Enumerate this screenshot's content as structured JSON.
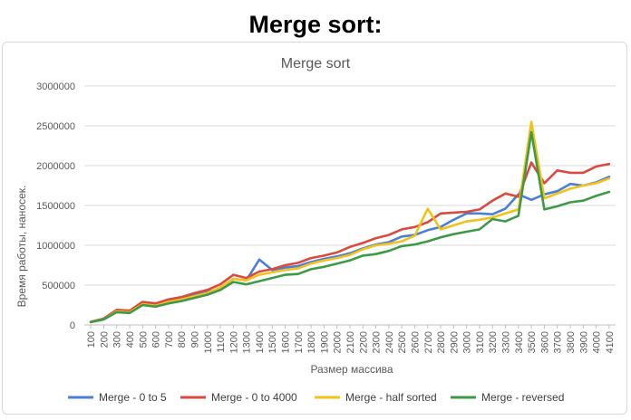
{
  "page": {
    "heading": "Merge sort:"
  },
  "chart_data": {
    "type": "line",
    "title": "Merge sort",
    "xlabel": "Размер массива",
    "ylabel": "Время работы, наносек.",
    "ylim": [
      0,
      3000000
    ],
    "y_ticks": [
      0,
      500000,
      1000000,
      1500000,
      2000000,
      2500000,
      3000000
    ],
    "grid": true,
    "legend_position": "bottom",
    "categories": [
      "100",
      "200",
      "300",
      "400",
      "500",
      "600",
      "700",
      "800",
      "900",
      "1000",
      "1100",
      "1200",
      "1300",
      "1400",
      "1500",
      "1600",
      "1700",
      "1800",
      "1900",
      "2000",
      "2100",
      "2200",
      "2300",
      "2400",
      "2500",
      "2600",
      "2700",
      "2800",
      "2900",
      "3000",
      "3100",
      "3200",
      "3300",
      "3400",
      "3500",
      "3600",
      "3700",
      "3800",
      "3900",
      "4000",
      "4100"
    ],
    "series": [
      {
        "name": "Merge - 0 to 5",
        "color": "#4a7fd8",
        "values": [
          35000,
          70000,
          170000,
          160000,
          260000,
          240000,
          290000,
          330000,
          370000,
          410000,
          460000,
          580000,
          560000,
          820000,
          690000,
          720000,
          740000,
          790000,
          830000,
          860000,
          900000,
          960000,
          1010000,
          1040000,
          1110000,
          1130000,
          1190000,
          1230000,
          1320000,
          1400000,
          1400000,
          1390000,
          1460000,
          1640000,
          1570000,
          1640000,
          1680000,
          1770000,
          1750000,
          1790000,
          1860000
        ]
      },
      {
        "name": "Merge - 0 to 4000",
        "color": "#d94a3f",
        "values": [
          40000,
          80000,
          190000,
          180000,
          290000,
          270000,
          320000,
          350000,
          400000,
          440000,
          510000,
          630000,
          590000,
          670000,
          700000,
          750000,
          780000,
          840000,
          870000,
          910000,
          980000,
          1030000,
          1090000,
          1130000,
          1200000,
          1230000,
          1290000,
          1400000,
          1410000,
          1420000,
          1450000,
          1560000,
          1650000,
          1610000,
          2040000,
          1780000,
          1940000,
          1910000,
          1910000,
          1990000,
          2020000
        ]
      },
      {
        "name": "Merge - half sorted",
        "color": "#f2c21b",
        "values": [
          35000,
          70000,
          170000,
          160000,
          260000,
          240000,
          290000,
          320000,
          360000,
          400000,
          470000,
          580000,
          560000,
          630000,
          660000,
          690000,
          710000,
          770000,
          810000,
          840000,
          880000,
          950000,
          1000000,
          1020000,
          1050000,
          1120000,
          1460000,
          1200000,
          1250000,
          1300000,
          1320000,
          1350000,
          1400000,
          1450000,
          2550000,
          1590000,
          1650000,
          1710000,
          1750000,
          1780000,
          1840000
        ]
      },
      {
        "name": "Merge - reversed",
        "color": "#3f9a47",
        "values": [
          35000,
          70000,
          160000,
          150000,
          250000,
          230000,
          270000,
          300000,
          340000,
          380000,
          440000,
          540000,
          510000,
          550000,
          590000,
          630000,
          640000,
          700000,
          730000,
          770000,
          810000,
          870000,
          890000,
          930000,
          990000,
          1010000,
          1050000,
          1100000,
          1140000,
          1170000,
          1200000,
          1330000,
          1300000,
          1370000,
          2420000,
          1450000,
          1490000,
          1540000,
          1560000,
          1620000,
          1670000
        ]
      }
    ]
  }
}
